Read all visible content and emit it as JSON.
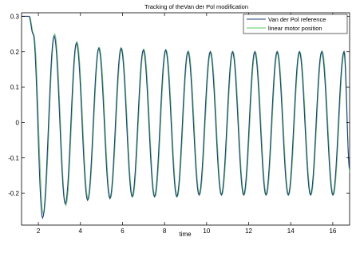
{
  "chart_data": {
    "type": "line",
    "title": "Tracking of theVan der Pol modification",
    "xlabel": "time",
    "ylabel": "",
    "xlim": [
      1.2,
      16.8
    ],
    "ylim": [
      -0.29,
      0.31
    ],
    "xticks": [
      2,
      4,
      6,
      8,
      10,
      12,
      14,
      16
    ],
    "yticks": [
      -0.2,
      -0.1,
      0,
      0.1,
      0.2,
      0.3
    ],
    "xtick_labels": [
      "2",
      "4",
      "6",
      "8",
      "10",
      "12",
      "14",
      "16"
    ],
    "ytick_labels": [
      "-0.2",
      "-0.1",
      "0",
      "0.1",
      "0.2",
      "0.3"
    ],
    "grid": false,
    "legend_position": "top-right",
    "series": [
      {
        "name": "Van der Pol reference",
        "color": "#1f3f7f",
        "x": [
          1.2,
          1.55,
          1.75,
          2.2,
          2.75,
          3.28,
          3.81,
          4.34,
          4.87,
          5.4,
          5.93,
          6.46,
          6.99,
          7.52,
          8.05,
          8.58,
          9.11,
          9.64,
          10.17,
          10.7,
          11.23,
          11.76,
          12.29,
          12.82,
          13.35,
          13.88,
          14.41,
          14.94,
          15.47,
          16.0,
          16.53,
          16.8
        ],
        "y": [
          0.3,
          0.3,
          0.25,
          -0.27,
          0.245,
          -0.23,
          0.225,
          -0.22,
          0.21,
          -0.215,
          0.21,
          -0.21,
          0.205,
          -0.21,
          0.205,
          -0.21,
          0.2,
          -0.205,
          0.2,
          -0.205,
          0.2,
          -0.205,
          0.2,
          -0.205,
          0.2,
          -0.205,
          0.2,
          -0.205,
          0.2,
          -0.205,
          0.2,
          -0.13
        ]
      },
      {
        "name": "linear motor position",
        "color": "#5ec45e",
        "x": [
          1.2,
          1.58,
          1.78,
          2.24,
          2.78,
          3.31,
          3.84,
          4.37,
          4.9,
          5.43,
          5.96,
          6.49,
          7.02,
          7.55,
          8.08,
          8.61,
          9.14,
          9.67,
          10.2,
          10.73,
          11.26,
          11.79,
          12.32,
          12.85,
          13.38,
          13.91,
          14.44,
          14.97,
          15.5,
          16.03,
          16.56,
          16.8
        ],
        "y": [
          0.3,
          0.3,
          0.25,
          -0.26,
          0.25,
          -0.235,
          0.228,
          -0.218,
          0.212,
          -0.214,
          0.21,
          -0.21,
          0.207,
          -0.21,
          0.205,
          -0.21,
          0.202,
          -0.205,
          0.2,
          -0.205,
          0.2,
          -0.205,
          0.2,
          -0.205,
          0.2,
          -0.205,
          0.2,
          -0.205,
          0.202,
          -0.205,
          0.2,
          -0.14
        ]
      }
    ]
  }
}
